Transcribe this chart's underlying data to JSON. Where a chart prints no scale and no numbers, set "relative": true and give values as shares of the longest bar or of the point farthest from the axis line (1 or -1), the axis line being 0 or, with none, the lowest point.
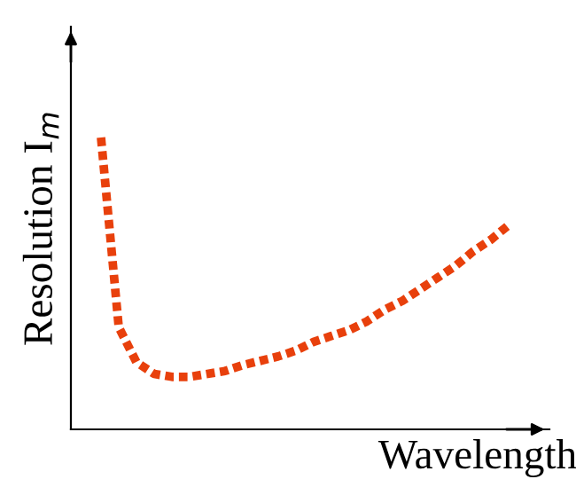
{
  "chart_data": {
    "type": "line",
    "relative": true,
    "xlabel": "Wavelength",
    "ylabel": "Resolution I$_{m}$",
    "categories": [
      null,
      null,
      null,
      null,
      null,
      null,
      null,
      null,
      null,
      null,
      null,
      null,
      null,
      null,
      null,
      null,
      null,
      null,
      null,
      null,
      null,
      null,
      null,
      null
    ],
    "series": [
      {
        "color": "#e8400c",
        "values": [
          1.0,
          0.35,
          0.23,
          0.19,
          0.18,
          0.18,
          0.19,
          0.2,
          0.22,
          0.235,
          0.25,
          0.27,
          0.3,
          0.32,
          0.34,
          0.37,
          0.41,
          0.44,
          0.48,
          0.52,
          0.56,
          0.61,
          0.65,
          0.7
        ]
      }
    ],
    "legend": false,
    "line_style": "dotted",
    "marker": "none"
  }
}
